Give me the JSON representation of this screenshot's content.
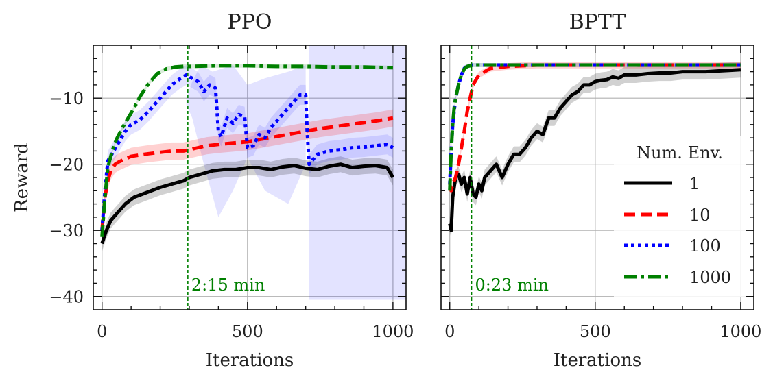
{
  "chart_data": [
    {
      "type": "line",
      "title": "PPO",
      "xlabel": "Iterations",
      "ylabel": "Reward",
      "xlim": [
        -30,
        1045
      ],
      "ylim": [
        -42,
        -2
      ],
      "xticks": [
        0,
        500,
        1000
      ],
      "yticks": [
        -10,
        -20,
        -30,
        -40
      ],
      "xtick_labels": [
        "0",
        "500",
        "1000"
      ],
      "ytick_labels": [
        "−10",
        "−20",
        "−30",
        "−40"
      ],
      "grid": true,
      "vline": {
        "x": 295,
        "label": "2:15 min",
        "color": "#008000"
      },
      "series": [
        {
          "name": "1",
          "color": "#000000",
          "dash": "solid",
          "x": [
            0,
            15,
            30,
            50,
            80,
            110,
            140,
            170,
            200,
            240,
            280,
            300,
            340,
            380,
            420,
            460,
            500,
            540,
            580,
            620,
            660,
            700,
            740,
            780,
            820,
            860,
            900,
            940,
            980,
            1000
          ],
          "y": [
            -32,
            -30,
            -28.5,
            -27.5,
            -26,
            -25,
            -24.5,
            -24,
            -23.5,
            -23,
            -22.5,
            -22,
            -21.5,
            -21,
            -20.8,
            -20.8,
            -20.5,
            -20.5,
            -20.8,
            -20.4,
            -20.2,
            -20.6,
            -20.8,
            -20.3,
            -20,
            -20.5,
            -20.3,
            -20.2,
            -20.5,
            -22
          ],
          "band": 1.2
        },
        {
          "name": "10",
          "color": "#ff0000",
          "dash": "dashed",
          "x": [
            0,
            10,
            20,
            30,
            45,
            60,
            80,
            100,
            130,
            160,
            200,
            240,
            280,
            320,
            360,
            400,
            450,
            500,
            550,
            600,
            650,
            700,
            750,
            800,
            850,
            900,
            950,
            1000
          ],
          "y": [
            -30,
            -25,
            -22.5,
            -21,
            -20,
            -19.6,
            -19.2,
            -18.8,
            -18.6,
            -18.4,
            -18.2,
            -18,
            -18,
            -17.6,
            -17.2,
            -17,
            -16.8,
            -16.6,
            -16.2,
            -15.8,
            -15.4,
            -15,
            -14.6,
            -14.3,
            -14,
            -13.7,
            -13.4,
            -13
          ],
          "band": 1.3
        },
        {
          "name": "100",
          "color": "#0000ff",
          "dash": "dotted",
          "x": [
            0,
            10,
            20,
            40,
            60,
            80,
            100,
            130,
            160,
            200,
            240,
            270,
            290,
            310,
            330,
            350,
            370,
            380,
            390,
            400,
            410,
            430,
            450,
            470,
            490,
            500,
            520,
            540,
            560,
            580,
            600,
            620,
            640,
            660,
            680,
            700,
            705,
            712,
            740,
            780,
            820,
            860,
            900,
            940,
            980,
            1000
          ],
          "y": [
            -30,
            -24,
            -19.5,
            -18,
            -16.5,
            -15,
            -14,
            -13.3,
            -12,
            -10,
            -8,
            -7,
            -6.5,
            -7,
            -7.5,
            -9,
            -8,
            -8.2,
            -8.5,
            -15,
            -15.8,
            -13,
            -13.8,
            -12.5,
            -12.8,
            -17.5,
            -17.2,
            -15.5,
            -16,
            -14.5,
            -13.5,
            -12.5,
            -11.5,
            -10.5,
            -9.5,
            -9.5,
            -15,
            -20,
            -18.5,
            -18,
            -17.8,
            -17.5,
            -17.4,
            -17.2,
            -17,
            -17.5
          ],
          "band": 1.5
        },
        {
          "name": "1000",
          "color": "#008000",
          "dash": "dashdot",
          "x": [
            0,
            10,
            20,
            35,
            50,
            70,
            90,
            110,
            130,
            160,
            190,
            220,
            250,
            280,
            300,
            400,
            500,
            600,
            700,
            800,
            900,
            1000
          ],
          "y": [
            -31,
            -25,
            -20.5,
            -18,
            -16.2,
            -14.5,
            -13,
            -11.5,
            -9.8,
            -7.8,
            -6.3,
            -5.6,
            -5.3,
            -5.2,
            -5.2,
            -5.1,
            -5.1,
            -5.2,
            -5.2,
            -5.3,
            -5.3,
            -5.4
          ],
          "band": 0.3
        }
      ]
    },
    {
      "type": "line",
      "title": "BPTT",
      "xlabel": "Iterations",
      "ylabel": "",
      "xlim": [
        -30,
        1045
      ],
      "ylim": [
        -42,
        -2
      ],
      "xticks": [
        0,
        500,
        1000
      ],
      "yticks": [
        -10,
        -20,
        -30,
        -40
      ],
      "xtick_labels": [
        "0",
        "500",
        "1000"
      ],
      "ytick_labels": [],
      "grid": true,
      "vline": {
        "x": 75,
        "label": "0:23 min",
        "color": "#008000"
      },
      "legend": {
        "title": "Num. Env.",
        "position": "lower-right"
      },
      "series": [
        {
          "name": "1",
          "color": "#000000",
          "dash": "solid",
          "x": [
            0,
            5,
            10,
            20,
            30,
            40,
            50,
            60,
            70,
            80,
            90,
            100,
            110,
            120,
            140,
            160,
            180,
            200,
            220,
            240,
            260,
            280,
            300,
            320,
            340,
            360,
            380,
            400,
            420,
            440,
            460,
            480,
            500,
            520,
            540,
            560,
            580,
            600,
            640,
            680,
            720,
            760,
            800,
            840,
            880,
            920,
            960,
            1000
          ],
          "y": [
            -29,
            -30,
            -25,
            -22,
            -21.5,
            -23,
            -22,
            -24.5,
            -22,
            -24.5,
            -25,
            -23,
            -24,
            -22,
            -21,
            -20,
            -22,
            -20,
            -18.5,
            -18.5,
            -17.5,
            -16,
            -15,
            -15.5,
            -13,
            -13,
            -11.5,
            -10.5,
            -9.5,
            -9,
            -8,
            -8,
            -7.5,
            -7.3,
            -7.2,
            -6.8,
            -7,
            -6.5,
            -6.5,
            -6.3,
            -6.2,
            -6.2,
            -6,
            -6,
            -6,
            -5.9,
            -5.8,
            -5.7
          ],
          "band": 1.2
        },
        {
          "name": "10",
          "color": "#ff0000",
          "dash": "dashed",
          "x": [
            0,
            5,
            10,
            20,
            30,
            40,
            50,
            60,
            70,
            80,
            100,
            140,
            200,
            300,
            400,
            500,
            600,
            700,
            800,
            900,
            1000
          ],
          "y": [
            -23,
            -24,
            -23,
            -22,
            -20,
            -17.5,
            -15,
            -12,
            -10,
            -8,
            -6.5,
            -5.5,
            -5.2,
            -5,
            -5,
            -5,
            -5,
            -5,
            -5,
            -5,
            -5
          ],
          "band": 0.5
        },
        {
          "name": "100",
          "color": "#0000ff",
          "dash": "dotted",
          "x": [
            0,
            5,
            10,
            20,
            30,
            40,
            50,
            60,
            80,
            100,
            150,
            200,
            300,
            400,
            500,
            600,
            700,
            800,
            900,
            1000
          ],
          "y": [
            -23,
            -18,
            -14,
            -10,
            -8,
            -6.5,
            -5.5,
            -5.1,
            -5,
            -5,
            -5,
            -5,
            -5,
            -5,
            -5,
            -5,
            -5,
            -5,
            -5,
            -5
          ],
          "band": 0.3
        },
        {
          "name": "1000",
          "color": "#008000",
          "dash": "dashdot",
          "x": [
            0,
            5,
            10,
            15,
            20,
            30,
            40,
            50,
            60,
            80,
            100,
            200,
            300,
            400,
            500,
            600,
            700,
            800,
            900,
            1000
          ],
          "y": [
            -24,
            -18,
            -14,
            -11.5,
            -10,
            -8,
            -6.5,
            -5.6,
            -5.2,
            -5,
            -5,
            -5,
            -5,
            -5,
            -5,
            -5,
            -5,
            -5,
            -5,
            -5
          ],
          "band": 0.3
        }
      ]
    }
  ]
}
